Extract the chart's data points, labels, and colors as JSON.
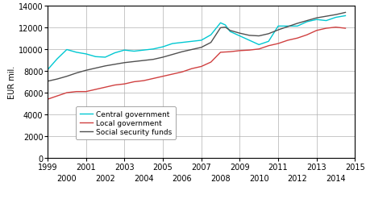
{
  "title": "",
  "ylabel": "EUR mil.",
  "xlim": [
    1999,
    2015
  ],
  "ylim": [
    0,
    14000
  ],
  "yticks": [
    0,
    2000,
    4000,
    6000,
    8000,
    10000,
    12000,
    14000
  ],
  "xticks_odd": [
    1999,
    2001,
    2003,
    2005,
    2007,
    2009,
    2011,
    2013,
    2015
  ],
  "xticks_even": [
    2000,
    2002,
    2004,
    2006,
    2008,
    2010,
    2012,
    2014
  ],
  "central_government": {
    "label": "Central government",
    "color": "#00c8d2",
    "x": [
      1999,
      1999.5,
      2000,
      2000.5,
      2001,
      2001.5,
      2002,
      2002.5,
      2003,
      2003.5,
      2004,
      2004.5,
      2005,
      2005.5,
      2006,
      2006.5,
      2007,
      2007.5,
      2008,
      2008.25,
      2008.5,
      2009,
      2009.5,
      2010,
      2010.5,
      2011,
      2011.5,
      2012,
      2012.5,
      2013,
      2013.5,
      2014,
      2014.5
    ],
    "y": [
      8100,
      9100,
      9950,
      9700,
      9550,
      9300,
      9250,
      9650,
      9900,
      9800,
      9900,
      10000,
      10200,
      10500,
      10600,
      10700,
      10800,
      11300,
      12400,
      12200,
      11600,
      11200,
      10800,
      10400,
      10700,
      12100,
      12100,
      12100,
      12500,
      12700,
      12600,
      12900,
      13050
    ]
  },
  "local_government": {
    "label": "Local government",
    "color": "#d04040",
    "x": [
      1999,
      1999.5,
      2000,
      2000.5,
      2001,
      2001.5,
      2002,
      2002.5,
      2003,
      2003.5,
      2004,
      2004.5,
      2005,
      2005.5,
      2006,
      2006.5,
      2007,
      2007.5,
      2008,
      2008.5,
      2009,
      2009.5,
      2010,
      2010.5,
      2011,
      2011.5,
      2012,
      2012.5,
      2013,
      2013.5,
      2014,
      2014.5
    ],
    "y": [
      5400,
      5700,
      6000,
      6100,
      6100,
      6300,
      6500,
      6700,
      6800,
      7000,
      7100,
      7300,
      7500,
      7700,
      7900,
      8200,
      8400,
      8800,
      9700,
      9750,
      9850,
      9900,
      10000,
      10300,
      10500,
      10800,
      11000,
      11300,
      11700,
      11900,
      12000,
      11900
    ]
  },
  "social_security": {
    "label": "Social security funds",
    "color": "#505050",
    "x": [
      1999,
      1999.5,
      2000,
      2000.5,
      2001,
      2001.5,
      2002,
      2002.5,
      2003,
      2003.5,
      2004,
      2004.5,
      2005,
      2005.5,
      2006,
      2006.5,
      2007,
      2007.5,
      2008,
      2008.25,
      2008.5,
      2009,
      2009.5,
      2010,
      2010.5,
      2011,
      2011.5,
      2012,
      2012.5,
      2013,
      2013.5,
      2014,
      2014.5
    ],
    "y": [
      7050,
      7250,
      7500,
      7800,
      8050,
      8250,
      8450,
      8600,
      8750,
      8850,
      8950,
      9050,
      9250,
      9500,
      9750,
      9950,
      10150,
      10600,
      11950,
      12000,
      11700,
      11450,
      11250,
      11200,
      11400,
      11750,
      12050,
      12350,
      12600,
      12850,
      13000,
      13150,
      13350
    ]
  },
  "background_color": "#ffffff",
  "grid_color": "#b0b0b0",
  "figsize": [
    4.54,
    2.53
  ],
  "dpi": 100
}
